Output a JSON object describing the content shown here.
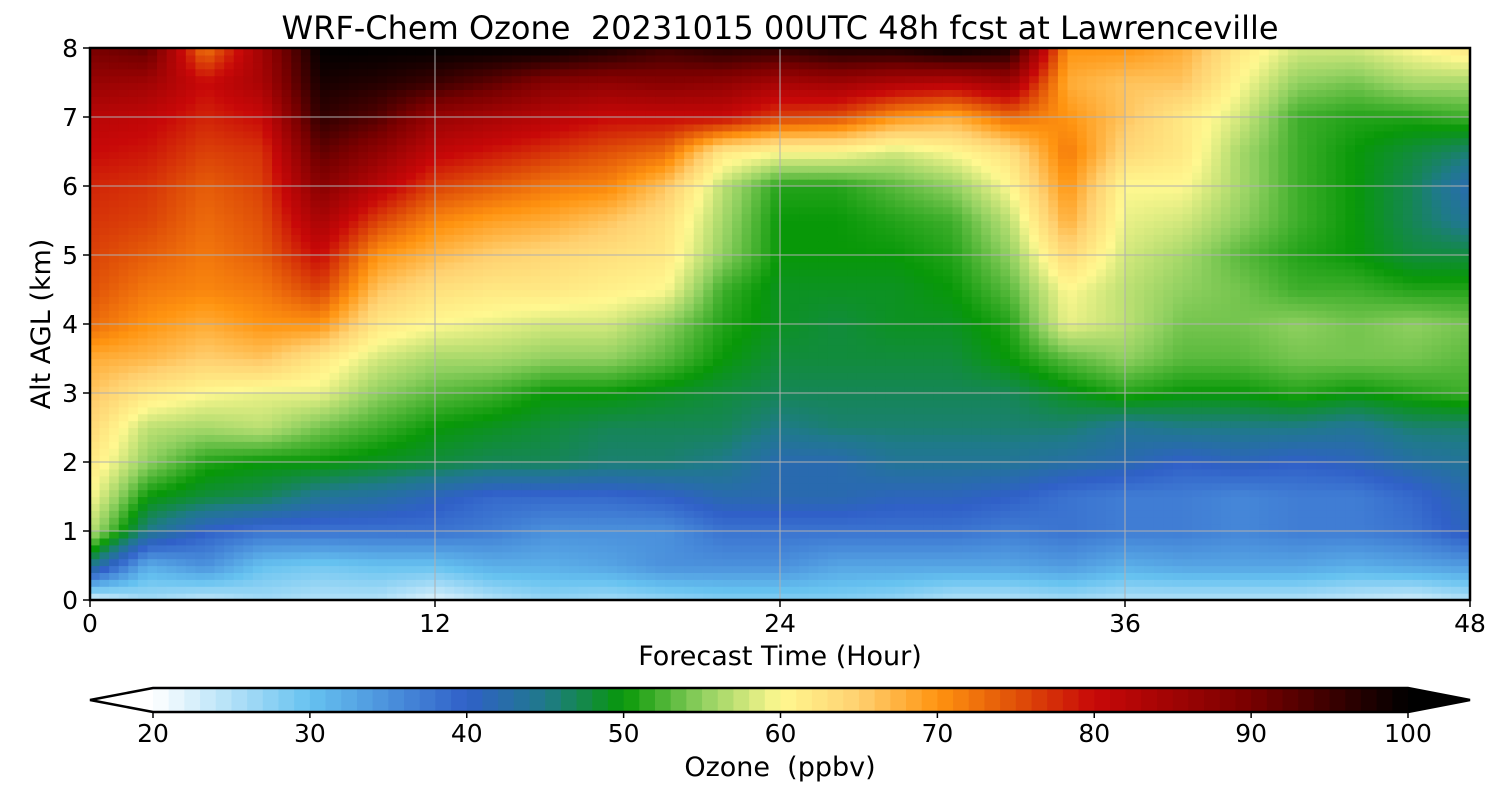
{
  "chart_data": {
    "type": "heatmap",
    "title": "WRF-Chem Ozone  20231015 00UTC 48h fcst at Lawrenceville",
    "xlabel": "Forecast Time (Hour)",
    "ylabel": "Alt AGL (km)",
    "xlim": [
      0,
      48
    ],
    "ylim": [
      0,
      8
    ],
    "x_ticks": [
      "0",
      "12",
      "24",
      "36",
      "48"
    ],
    "y_ticks": [
      "0",
      "1",
      "2",
      "3",
      "4",
      "5",
      "6",
      "7",
      "8"
    ],
    "grid": true,
    "colorbar": {
      "label": "Ozone  (ppbv)",
      "placement": "bottom",
      "min": 20,
      "max": 100,
      "ticks": [
        "20",
        "30",
        "40",
        "50",
        "60",
        "70",
        "80",
        "90",
        "100"
      ],
      "extend": "both",
      "color_stops": [
        {
          "value": 20,
          "color": "#ffffff"
        },
        {
          "value": 30,
          "color": "#66c2f0"
        },
        {
          "value": 40,
          "color": "#3060c8"
        },
        {
          "value": 45,
          "color": "#1f7a8a"
        },
        {
          "value": 50,
          "color": "#089808"
        },
        {
          "value": 55,
          "color": "#90d060"
        },
        {
          "value": 60,
          "color": "#fff890"
        },
        {
          "value": 65,
          "color": "#ffd070"
        },
        {
          "value": 70,
          "color": "#ff9410"
        },
        {
          "value": 75,
          "color": "#e05008"
        },
        {
          "value": 80,
          "color": "#c80808"
        },
        {
          "value": 90,
          "color": "#780000"
        },
        {
          "value": 100,
          "color": "#000000"
        }
      ]
    },
    "x": [
      0,
      2,
      4,
      6,
      8,
      10,
      12,
      14,
      16,
      18,
      20,
      22,
      24,
      26,
      28,
      30,
      32,
      34,
      36,
      38,
      40,
      42,
      44,
      46,
      48
    ],
    "y": [
      0,
      0.5,
      1,
      1.5,
      2,
      2.5,
      3,
      3.5,
      4,
      4.5,
      5,
      5.5,
      6,
      6.5,
      7,
      7.5,
      8
    ],
    "z": [
      [
        22,
        26,
        24,
        26,
        25,
        25,
        22,
        25,
        27,
        26,
        27,
        28,
        28,
        28,
        27,
        25,
        25,
        26,
        25,
        25,
        25,
        25,
        24,
        23,
        25
      ],
      [
        45,
        32,
        35,
        30,
        29,
        30,
        30,
        32,
        32,
        33,
        35,
        35,
        35,
        33,
        33,
        33,
        33,
        34,
        32,
        33,
        33,
        33,
        32,
        33,
        34
      ],
      [
        57,
        45,
        40,
        38,
        38,
        38,
        38,
        37,
        35,
        35,
        35,
        38,
        38,
        38,
        38,
        38,
        37,
        38,
        37,
        37,
        36,
        37,
        37,
        38,
        41
      ],
      [
        60,
        50,
        48,
        47,
        44,
        43,
        41,
        39,
        39,
        39,
        40,
        42,
        42,
        42,
        41,
        41,
        40,
        38,
        37,
        37,
        36,
        37,
        37,
        39,
        42
      ],
      [
        62,
        55,
        51,
        50,
        50,
        49,
        48,
        47,
        47,
        46,
        46,
        45,
        42,
        42,
        44,
        44,
        44,
        43,
        42,
        40,
        41,
        40,
        41,
        43,
        44
      ],
      [
        64,
        57,
        56,
        57,
        54,
        52,
        50,
        49,
        48,
        47,
        47,
        47,
        45,
        46,
        46,
        46,
        46,
        46,
        44,
        45,
        45,
        45,
        44,
        46,
        46
      ],
      [
        66,
        62,
        60,
        59,
        59,
        55,
        53,
        52,
        50,
        50,
        49,
        48,
        47,
        47,
        47,
        47,
        47,
        49,
        51,
        50,
        50,
        51,
        50,
        51,
        52
      ],
      [
        68,
        67,
        65,
        66,
        62,
        58,
        56,
        56,
        55,
        55,
        53,
        50,
        48,
        48,
        48,
        48,
        50,
        53,
        55,
        53,
        53,
        54,
        54,
        54,
        53
      ],
      [
        73,
        70,
        68,
        70,
        70,
        62,
        60,
        59,
        58,
        58,
        55,
        51,
        49,
        48,
        49,
        49,
        51,
        59,
        57,
        54,
        54,
        55,
        54,
        55,
        54
      ],
      [
        75,
        72,
        71,
        72,
        76,
        66,
        63,
        62,
        62,
        61,
        60,
        52,
        49,
        49,
        49,
        50,
        53,
        60,
        57,
        55,
        54,
        52,
        52,
        51,
        51
      ],
      [
        76,
        74,
        72,
        74,
        80,
        70,
        67,
        65,
        64,
        63,
        62,
        55,
        50,
        50,
        50,
        51,
        55,
        64,
        58,
        56,
        53,
        51,
        50,
        48,
        48
      ],
      [
        77,
        76,
        73,
        75,
        84,
        76,
        71,
        69,
        68,
        66,
        63,
        56,
        50,
        50,
        51,
        52,
        57,
        68,
        59,
        58,
        55,
        52,
        50,
        47,
        44
      ],
      [
        78,
        77,
        74,
        76,
        88,
        82,
        76,
        74,
        72,
        71,
        66,
        57,
        51,
        51,
        53,
        55,
        60,
        70,
        60,
        60,
        56,
        52,
        50,
        47,
        42
      ],
      [
        80,
        79,
        76,
        77,
        92,
        87,
        81,
        79,
        77,
        75,
        73,
        62,
        60,
        60,
        58,
        60,
        63,
        72,
        64,
        62,
        56,
        52,
        50,
        48,
        46
      ],
      [
        82,
        81,
        78,
        80,
        96,
        93,
        86,
        84,
        82,
        80,
        80,
        80,
        76,
        75,
        70,
        68,
        73,
        70,
        66,
        62,
        58,
        52,
        51,
        51,
        52
      ],
      [
        86,
        85,
        80,
        84,
        98,
        97,
        95,
        92,
        88,
        87,
        88,
        87,
        84,
        85,
        83,
        82,
        85,
        68,
        66,
        66,
        60,
        55,
        54,
        56,
        56
      ],
      [
        90,
        92,
        72,
        85,
        100,
        100,
        100,
        100,
        100,
        98,
        95,
        97,
        96,
        98,
        98,
        100,
        98,
        70,
        70,
        68,
        62,
        58,
        58,
        60,
        62
      ]
    ]
  }
}
